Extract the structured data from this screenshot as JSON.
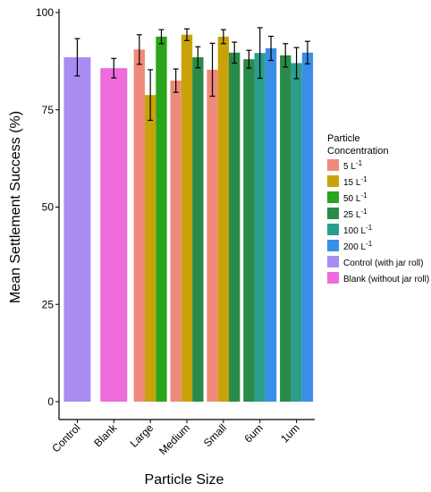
{
  "chart_data": {
    "type": "bar",
    "title": "",
    "xlabel": "Particle Size",
    "ylabel": "Mean Settlement Success (%)",
    "ylim": [
      0,
      100
    ],
    "yticks": [
      0,
      25,
      50,
      75,
      100
    ],
    "grid": false,
    "legend_position": "right",
    "categories": [
      "Control",
      "Blank",
      "Large",
      "Medium",
      "Small",
      "6um",
      "1um"
    ],
    "legend": {
      "title_lines": [
        "Particle",
        "Concentration"
      ],
      "entries": [
        {
          "key": "c5",
          "label": "5 L",
          "superscript": "-1",
          "color": "#ef8a7a"
        },
        {
          "key": "c15",
          "label": "15 L",
          "superscript": "-1",
          "color": "#c9a20a"
        },
        {
          "key": "c50",
          "label": "50 L",
          "superscript": "-1",
          "color": "#2aa41a"
        },
        {
          "key": "c25",
          "label": "25 L",
          "superscript": "-1",
          "color": "#2a8a4a"
        },
        {
          "key": "c100",
          "label": "100 L",
          "superscript": "-1",
          "color": "#2a9e8c"
        },
        {
          "key": "c200",
          "label": "200 L",
          "superscript": "-1",
          "color": "#3a8ee8"
        },
        {
          "key": "control",
          "label": "Control (with jar roll)",
          "superscript": "",
          "color": "#a98cf2"
        },
        {
          "key": "blank",
          "label": "Blank (without jar roll)",
          "superscript": "",
          "color": "#ee6bdb"
        }
      ]
    },
    "series": [
      {
        "category": "Control",
        "bars": [
          {
            "key": "control",
            "value": 88.5,
            "err": 4.8
          }
        ]
      },
      {
        "category": "Blank",
        "bars": [
          {
            "key": "blank",
            "value": 85.7,
            "err": 2.5
          }
        ]
      },
      {
        "category": "Large",
        "bars": [
          {
            "key": "c5",
            "value": 90.5,
            "err": 3.8
          },
          {
            "key": "c15",
            "value": 78.8,
            "err": 6.5
          },
          {
            "key": "c50",
            "value": 93.8,
            "err": 1.8
          }
        ]
      },
      {
        "category": "Medium",
        "bars": [
          {
            "key": "c5",
            "value": 82.5,
            "err": 3.0
          },
          {
            "key": "c15",
            "value": 94.3,
            "err": 1.5
          },
          {
            "key": "c25",
            "value": 88.5,
            "err": 2.7
          }
        ]
      },
      {
        "category": "Small",
        "bars": [
          {
            "key": "c5",
            "value": 85.3,
            "err": 6.8
          },
          {
            "key": "c15",
            "value": 93.8,
            "err": 1.8
          },
          {
            "key": "c25",
            "value": 89.7,
            "err": 2.7
          }
        ]
      },
      {
        "category": "6um",
        "bars": [
          {
            "key": "c25",
            "value": 88.0,
            "err": 2.3
          },
          {
            "key": "c100",
            "value": 89.6,
            "err": 6.5
          },
          {
            "key": "c200",
            "value": 90.8,
            "err": 3.1
          }
        ]
      },
      {
        "category": "1um",
        "bars": [
          {
            "key": "c25",
            "value": 89.0,
            "err": 3.0
          },
          {
            "key": "c100",
            "value": 87.0,
            "err": 4.0
          },
          {
            "key": "c200",
            "value": 89.7,
            "err": 2.9
          }
        ]
      }
    ]
  }
}
